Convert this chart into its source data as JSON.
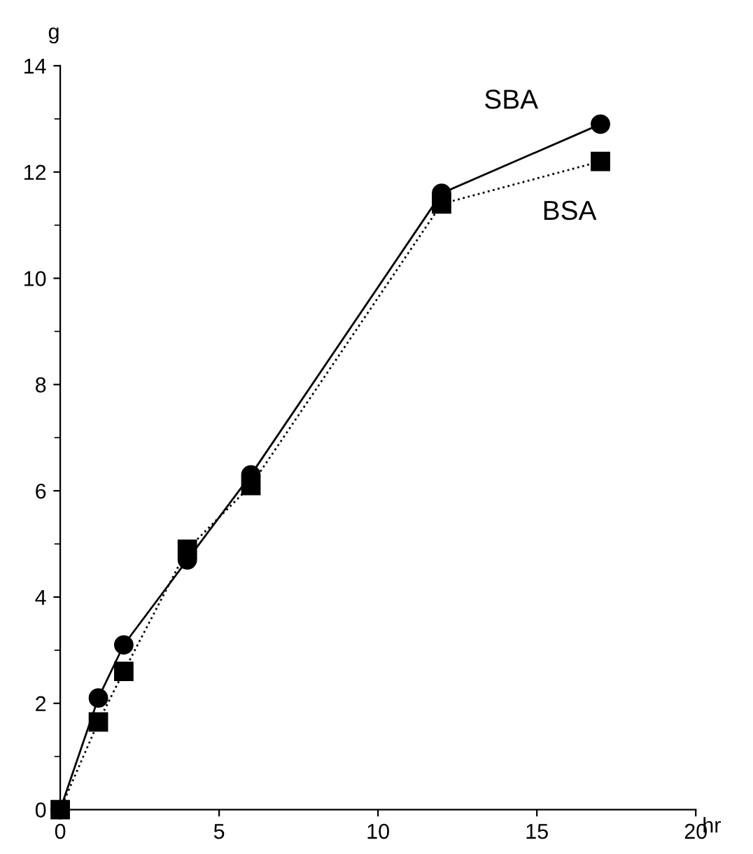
{
  "chart_data": {
    "type": "line",
    "xlabel": "hr",
    "ylabel": "g",
    "xlim": [
      0,
      20
    ],
    "xticks": [
      0,
      5,
      10,
      15,
      20
    ],
    "ylim": [
      0,
      14
    ],
    "yticks": [
      0,
      2,
      4,
      6,
      8,
      10,
      12,
      14
    ],
    "grid": false,
    "legend": false,
    "series": [
      {
        "name": "SBA",
        "color": "#000000",
        "marker": "circle",
        "line_style": "solid",
        "x": [
          0,
          1.2,
          2,
          4,
          6,
          12,
          17
        ],
        "values": [
          0,
          2.1,
          3.1,
          4.7,
          6.3,
          11.6,
          12.9
        ]
      },
      {
        "name": "BSA",
        "color": "#000000",
        "marker": "square",
        "line_style": "dotted",
        "x": [
          0,
          1.2,
          2,
          4,
          6,
          12,
          17
        ],
        "values": [
          0,
          1.65,
          2.6,
          4.9,
          6.1,
          11.4,
          12.2
        ]
      }
    ]
  }
}
